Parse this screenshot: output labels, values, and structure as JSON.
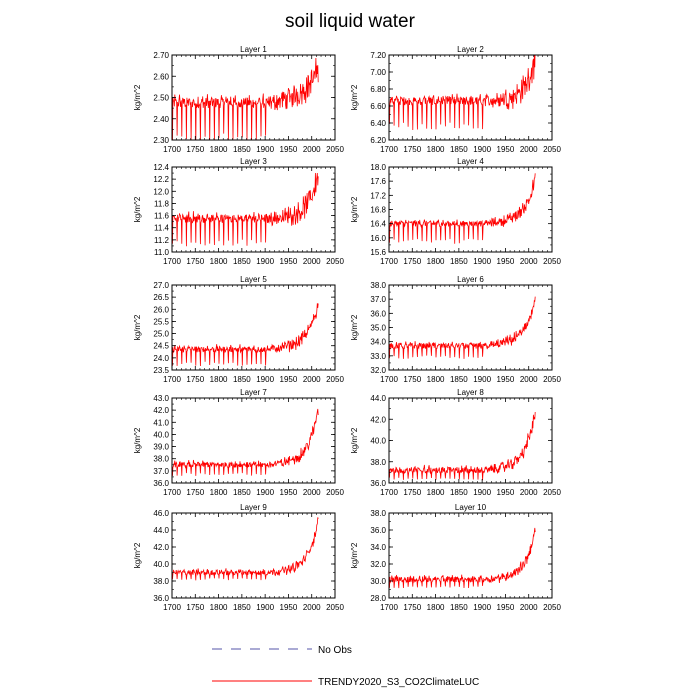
{
  "chart_data": {
    "type": "line",
    "title": "soil liquid water",
    "x_ticks": [
      1700,
      1750,
      1800,
      1850,
      1900,
      1950,
      2000,
      2050
    ],
    "xlim": [
      1700,
      2050
    ],
    "series_style": {
      "model_color": "#ff0000",
      "obs_color": "#5555aa"
    },
    "legend": [
      {
        "name": "No Obs",
        "style": "dashed",
        "color": "#5555aa"
      },
      {
        "name": "TRENDY2020_S3_CO2ClimateLUC",
        "style": "solid",
        "color": "#ff0000"
      }
    ],
    "panels": [
      {
        "title": "Layer 1",
        "ylabel": "kg/m^2",
        "ylim": [
          2.3,
          2.7
        ],
        "y_ticks": [
          "2.30",
          "2.40",
          "2.50",
          "2.60",
          "2.70"
        ],
        "y_minor": 0.05,
        "signal": {
          "base": 2.475,
          "noise": 0.025,
          "dip": 0.17,
          "late_amp": 0.08,
          "late_noise": 0.06,
          "end_rise": 0.08
        }
      },
      {
        "title": "Layer 2",
        "ylabel": "kg/m^2",
        "ylim": [
          6.2,
          7.2
        ],
        "y_ticks": [
          "6.20",
          "6.40",
          "6.60",
          "6.80",
          "7.00",
          "7.20"
        ],
        "y_minor": 0.1,
        "signal": {
          "base": 6.66,
          "noise": 0.05,
          "dip": 0.3,
          "late_amp": 0.1,
          "late_noise": 0.15,
          "end_rise": 0.4
        }
      },
      {
        "title": "Layer 3",
        "ylabel": "kg/m^2",
        "ylim": [
          11.0,
          12.4
        ],
        "y_ticks": [
          "11.0",
          "11.2",
          "11.4",
          "11.6",
          "11.8",
          "12.0",
          "12.2",
          "12.4"
        ],
        "y_minor": 0.1,
        "signal": {
          "base": 11.55,
          "noise": 0.07,
          "dip": 0.4,
          "late_amp": 0.15,
          "late_noise": 0.18,
          "end_rise": 0.6
        }
      },
      {
        "title": "Layer 4",
        "ylabel": "kg/m^2",
        "ylim": [
          15.6,
          18.0
        ],
        "y_ticks": [
          "15.6",
          "16.0",
          "16.4",
          "16.8",
          "17.2",
          "17.6",
          "18.0"
        ],
        "y_minor": 0.2,
        "signal": {
          "base": 16.4,
          "noise": 0.08,
          "dip": 0.5,
          "late_amp": 0.35,
          "late_noise": 0.18,
          "end_rise": 0.9
        }
      },
      {
        "title": "Layer 5",
        "ylabel": "kg/m^2",
        "ylim": [
          23.5,
          27.0
        ],
        "y_ticks": [
          "23.5",
          "24.0",
          "24.5",
          "25.0",
          "25.5",
          "26.0",
          "26.5",
          "27.0"
        ],
        "y_minor": 0.25,
        "signal": {
          "base": 24.35,
          "noise": 0.12,
          "dip": 0.6,
          "late_amp": 0.5,
          "late_noise": 0.25,
          "end_rise": 1.4
        }
      },
      {
        "title": "Layer 6",
        "ylabel": "kg/m^2",
        "ylim": [
          32.0,
          38.0
        ],
        "y_ticks": [
          "32.0",
          "33.0",
          "34.0",
          "35.0",
          "36.0",
          "37.0",
          "38.0"
        ],
        "y_minor": 0.5,
        "signal": {
          "base": 33.7,
          "noise": 0.2,
          "dip": 0.8,
          "late_amp": 0.9,
          "late_noise": 0.4,
          "end_rise": 2.4
        }
      },
      {
        "title": "Layer 7",
        "ylabel": "kg/m^2",
        "ylim": [
          36.0,
          43.0
        ],
        "y_ticks": [
          "36.0",
          "37.0",
          "38.0",
          "39.0",
          "40.0",
          "41.0",
          "42.0",
          "43.0"
        ],
        "y_minor": 0.5,
        "signal": {
          "base": 37.5,
          "noise": 0.22,
          "dip": 0.8,
          "late_amp": 1.0,
          "late_noise": 0.45,
          "end_rise": 3.5
        }
      },
      {
        "title": "Layer 8",
        "ylabel": "kg/m^2",
        "ylim": [
          36.0,
          44.0
        ],
        "y_ticks": [
          "36.0",
          "38.0",
          "40.0",
          "42.0",
          "44.0"
        ],
        "y_minor": 1.0,
        "signal": {
          "base": 37.2,
          "noise": 0.3,
          "dip": 0.8,
          "late_amp": 1.3,
          "late_noise": 0.55,
          "end_rise": 4.2
        }
      },
      {
        "title": "Layer 9",
        "ylabel": "kg/m^2",
        "ylim": [
          36.0,
          46.0
        ],
        "y_ticks": [
          "36.0",
          "38.0",
          "40.0",
          "42.0",
          "44.0",
          "46.0"
        ],
        "y_minor": 1.0,
        "signal": {
          "base": 39.0,
          "noise": 0.3,
          "dip": 0.8,
          "late_amp": 1.3,
          "late_noise": 0.55,
          "end_rise": 4.8
        }
      },
      {
        "title": "Layer 10",
        "ylabel": "kg/m^2",
        "ylim": [
          28.0,
          38.0
        ],
        "y_ticks": [
          "28.0",
          "30.0",
          "32.0",
          "34.0",
          "36.0",
          "38.0"
        ],
        "y_minor": 1.0,
        "signal": {
          "base": 30.2,
          "noise": 0.35,
          "dip": 0.9,
          "late_amp": 1.2,
          "late_noise": 0.55,
          "end_rise": 4.5
        }
      }
    ]
  }
}
